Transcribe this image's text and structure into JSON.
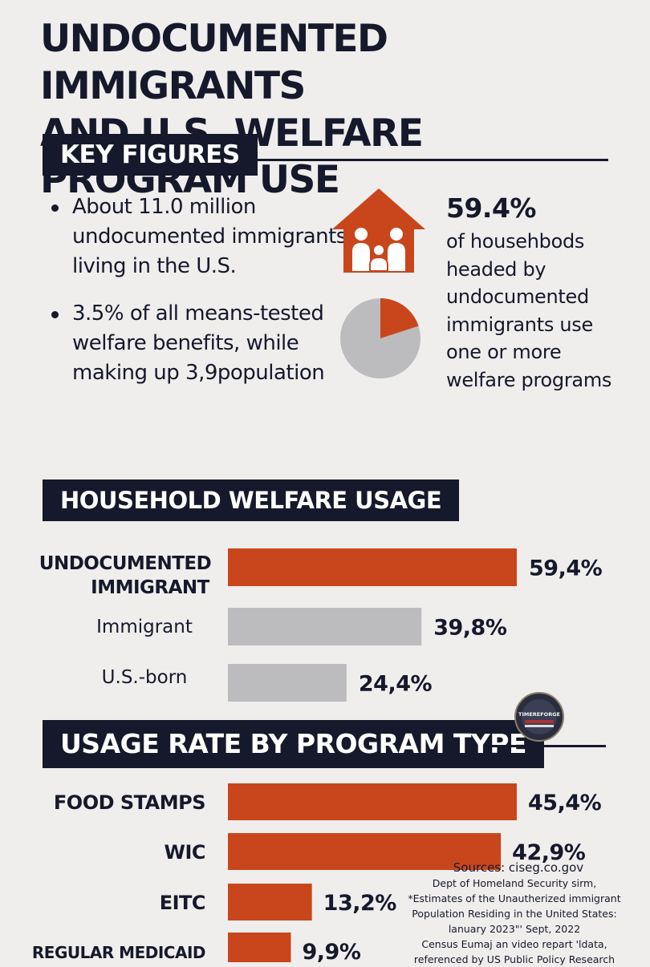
{
  "title": {
    "line1": "UNDOCUMENTED IMMIGRANTS",
    "line2": "AND U.S. WELFARE PROGRAM USE"
  },
  "key_figures": {
    "heading": "KEY FIGURES",
    "bullets": [
      "About 11.0 million undocumented immigrants living in the U.S.",
      "3.5% of all means-tested welfare benefits, while making up 3,9population"
    ],
    "stat_value": "59.4%",
    "stat_description": "of househbods headed by undocumented immigrants use one or more welfare programs",
    "pie_share": 0.2,
    "icons": [
      "house-family-icon",
      "pie-chart-icon",
      "seal-logo-icon"
    ],
    "colors": {
      "accent": "#c9461c",
      "gray": "#bcbcbf",
      "navy": "#16182b",
      "background": "#efeeec"
    }
  },
  "household_welfare": {
    "heading": "HOUSEHOLD WELFARE USAGE"
  },
  "program_usage": {
    "heading": "USAGE RATE BY PROGRAM TYPE"
  },
  "logo": {
    "text": "TIMEREFORGE"
  },
  "sources": {
    "lines": [
      "Sources: ciseg.co.gov",
      "Dept of Homeland Security sirm,",
      "*Estimates of the Unautherized immigrant",
      "Population Residing in the United States:",
      "lanuary 2023\"' Sept, 2022",
      "Census Eumaj an video repart 'ldata,",
      "referenced by US Public Policy Research"
    ]
  },
  "chart_data": [
    {
      "type": "bar",
      "title": "HOUSEHOLD WELFARE USAGE",
      "orientation": "horizontal",
      "categories": [
        "UNDOCUMENTED IMMIGRANT",
        "Immigrant",
        "U.S.-born"
      ],
      "values": [
        59.4,
        39.8,
        24.4
      ],
      "data_labels": [
        "59,4%",
        "39,8%",
        "24,4%"
      ],
      "bar_colors": [
        "#c9461c",
        "#bcbcbf",
        "#bcbcbf"
      ],
      "xlim": [
        0,
        70
      ],
      "grid": false
    },
    {
      "type": "bar",
      "title": "USAGE RATE BY PROGRAM TYPE",
      "orientation": "horizontal",
      "categories": [
        "FOOD STAMPS",
        "WIC",
        "EITC",
        "REGULAR MEDICAID"
      ],
      "values": [
        45.4,
        42.9,
        13.2,
        9.9
      ],
      "data_labels": [
        "45,4%",
        "42,9%",
        "13,2%",
        "9,9%"
      ],
      "bar_colors": [
        "#c9461c",
        "#c9461c",
        "#c9461c",
        "#c9461c"
      ],
      "xlim": [
        0,
        70
      ],
      "grid": false
    }
  ]
}
